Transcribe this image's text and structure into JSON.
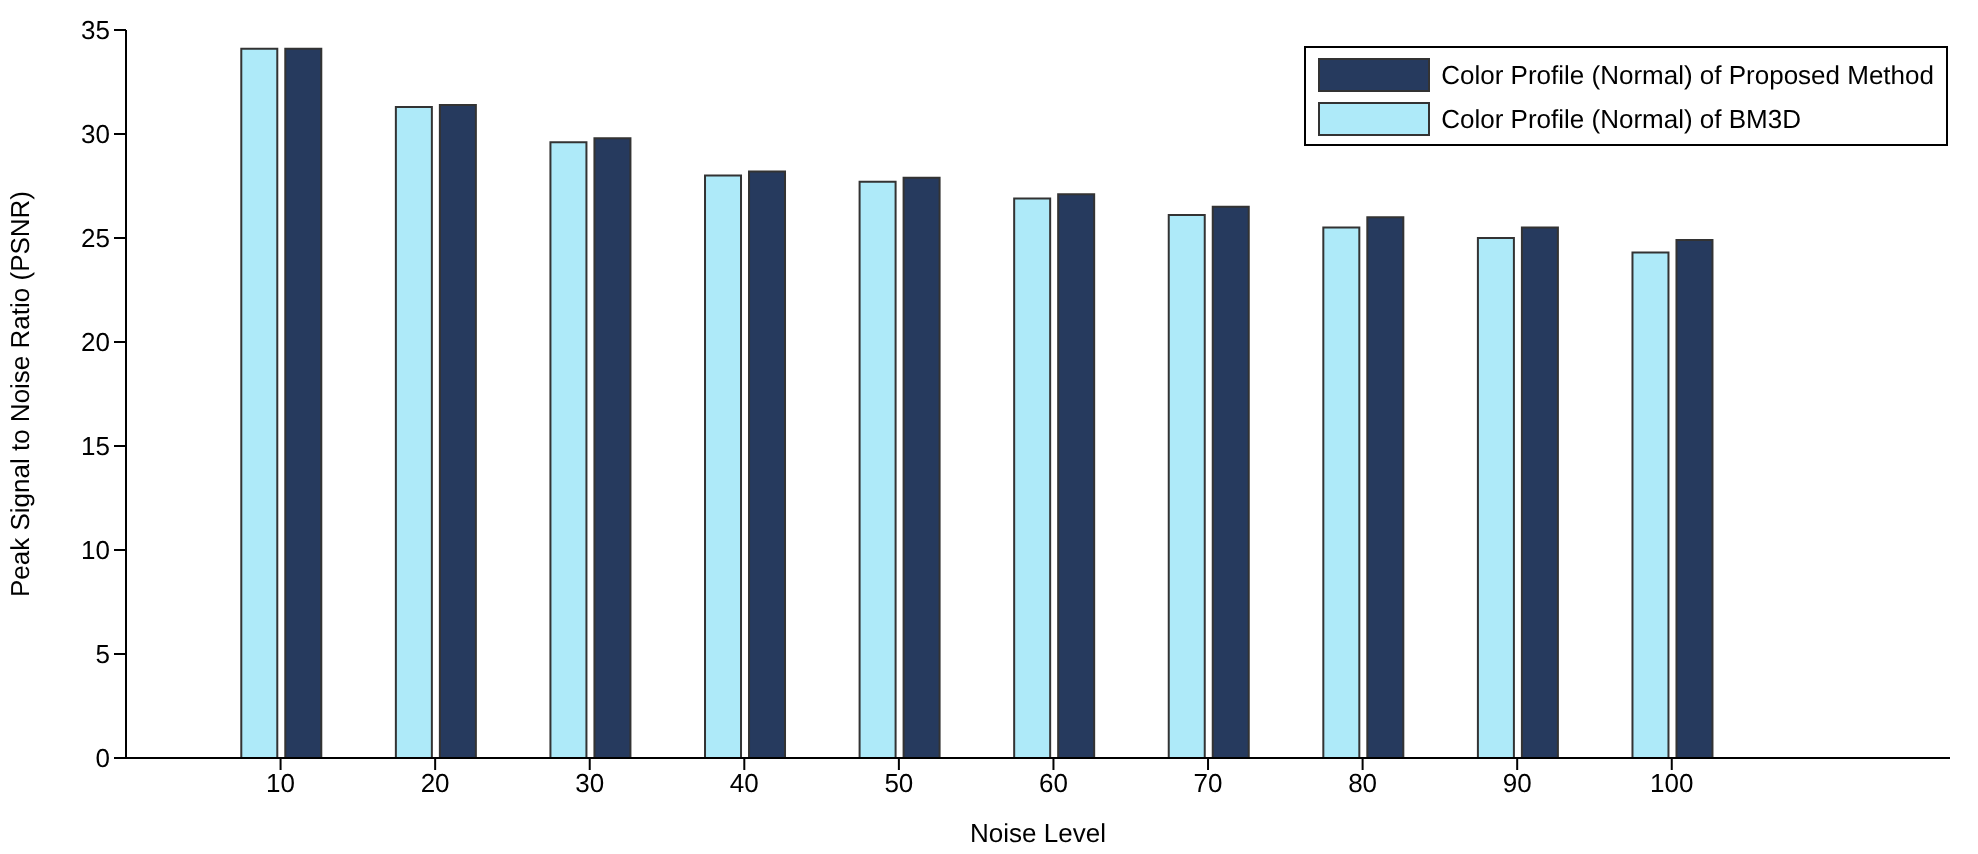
{
  "chart_data": {
    "type": "bar",
    "xlabel": "Noise Level",
    "ylabel": "Peak Signal to Noise Ratio (PSNR)",
    "x": [
      10,
      20,
      30,
      40,
      50,
      60,
      70,
      80,
      90,
      100
    ],
    "series": [
      {
        "name": "Color Profile (Normal) of BM3D",
        "color": "#aeeaf9",
        "values": [
          34.1,
          31.3,
          29.6,
          28.0,
          27.7,
          26.9,
          26.1,
          25.5,
          25.0,
          24.3
        ]
      },
      {
        "name": "Color Profile (Normal) of Proposed Method",
        "color": "#263a5e",
        "values": [
          34.1,
          31.4,
          29.8,
          28.2,
          27.9,
          27.1,
          26.5,
          26.0,
          25.5,
          24.9
        ]
      }
    ],
    "xlim": [
      0,
      118
    ],
    "xticks": [
      10,
      20,
      30,
      40,
      50,
      60,
      70,
      80,
      90,
      100
    ],
    "ylim": [
      0,
      35
    ],
    "yticks": [
      0,
      5,
      10,
      15,
      20,
      25,
      30,
      35
    ],
    "grid": false,
    "legend": "top right"
  }
}
